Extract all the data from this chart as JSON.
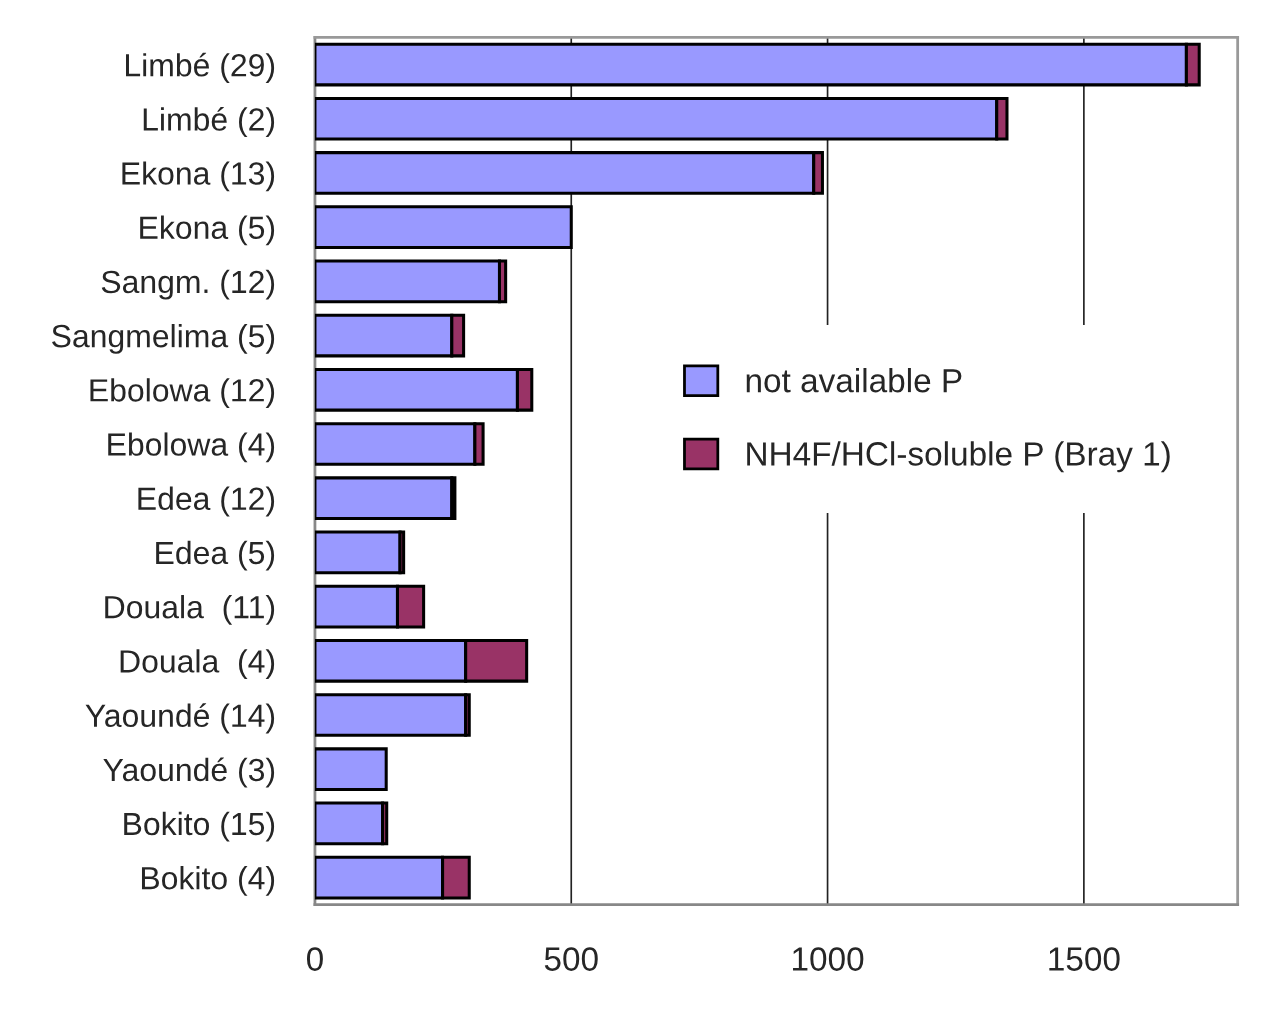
{
  "chart_data": {
    "type": "bar",
    "orientation": "horizontal",
    "stacked": true,
    "categories": [
      "Limbé (29)",
      "Limbé (2)",
      "Ekona (13)",
      "Ekona (5)",
      "Sangm. (12)",
      "Sangmelima (5)",
      "Ebolowa (12)",
      "Ebolowa (4)",
      "Edea (12)",
      "Edea (5)",
      "Douala  (11)",
      "Douala  (4)",
      "Yaoundé (14)",
      "Yaoundé (3)",
      "Bokito (15)",
      "Bokito (4)"
    ],
    "series": [
      {
        "name": "not available P",
        "color": "#9999ff",
        "values": [
          1700,
          1330,
          973,
          500,
          360,
          267,
          395,
          312,
          267,
          166,
          161,
          294,
          294,
          139,
          132,
          249
        ]
      },
      {
        "name": "NH4F/HCl-soluble P (Bray 1)",
        "color": "#993366",
        "values": [
          25,
          20,
          17,
          0,
          12,
          23,
          28,
          16,
          6,
          7,
          51,
          119,
          7,
          0,
          8,
          52
        ]
      }
    ],
    "xlim": [
      0,
      1800
    ],
    "xticks": [
      0,
      500,
      1000,
      1500
    ],
    "grid": "x",
    "legend": "right"
  }
}
